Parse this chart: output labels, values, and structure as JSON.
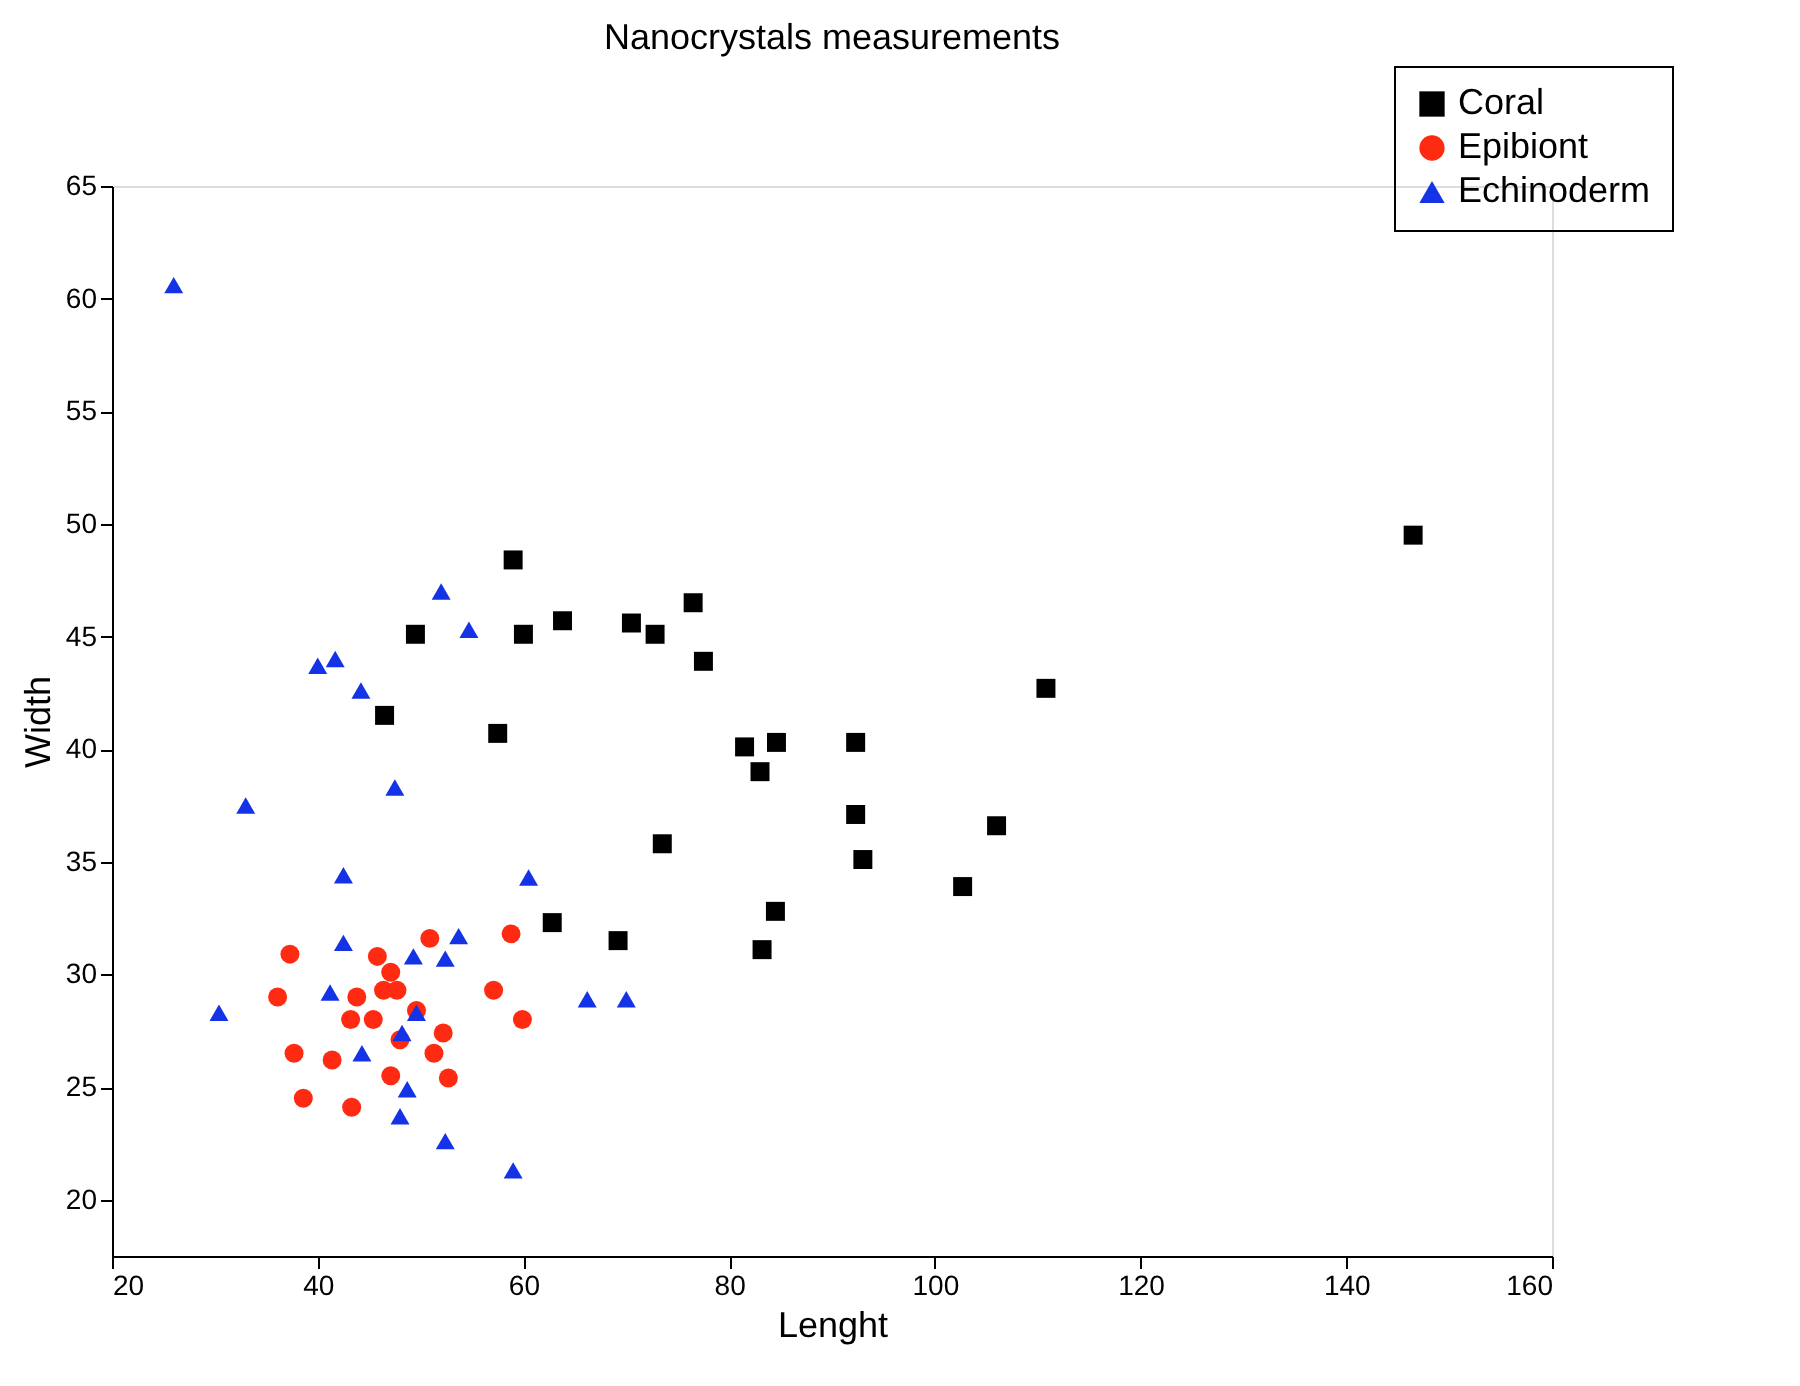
{
  "chart_data": {
    "type": "scatter",
    "title": "Nanocrystals measurements",
    "xlabel": "Lenght",
    "ylabel": "Width",
    "xlim": [
      20,
      160
    ],
    "xticks": [
      20,
      40,
      60,
      80,
      100,
      120,
      140,
      160
    ],
    "ylim": [
      17.5,
      65
    ],
    "yticks": [
      20,
      25,
      30,
      35,
      40,
      45,
      50,
      55,
      60,
      65
    ],
    "grid": false,
    "legend": "top right",
    "series": [
      {
        "name": "Coral",
        "color": "#000000",
        "marker": "square",
        "x": [
          59,
          49.5,
          60,
          63.8,
          70.5,
          72.8,
          76.5,
          77.5,
          46.5,
          57.5,
          81.5,
          83,
          84.6,
          92.3,
          92.3,
          93,
          73.5,
          106,
          110.8,
          102.7,
          84.5,
          83.2,
          62.8,
          69.2,
          146.5
        ],
        "values": [
          48.4,
          45.1,
          45.1,
          45.7,
          45.6,
          45.1,
          46.5,
          43.9,
          41.5,
          40.7,
          40.1,
          39,
          40.3,
          40.3,
          37.1,
          35.1,
          35.8,
          36.6,
          42.7,
          33.9,
          32.8,
          31.1,
          32.3,
          31.5,
          49.5
        ]
      },
      {
        "name": "Epibiont",
        "color": "#ff2a12",
        "marker": "circle",
        "x": [
          37.3,
          36.1,
          45.8,
          47.1,
          46.4,
          47.7,
          43.8,
          43.2,
          45.4,
          48.0,
          49.6,
          50.9,
          52.2,
          51.3,
          47.1,
          52.7,
          57.1,
          58.8,
          59.9,
          37.7,
          41.4,
          38.6,
          43.3
        ],
        "values": [
          30.9,
          29.0,
          30.8,
          30.1,
          29.3,
          29.3,
          29.0,
          28.0,
          28.0,
          27.1,
          28.4,
          31.6,
          27.4,
          26.5,
          25.5,
          25.4,
          29.3,
          31.8,
          28.0,
          26.5,
          26.2,
          24.5,
          24.1
        ]
      },
      {
        "name": "Echinoderm",
        "color": "#1432e6",
        "marker": "triangle",
        "x": [
          26,
          52,
          54.7,
          40,
          41.7,
          44.2,
          33,
          47.5,
          42.5,
          60.5,
          42.5,
          49.3,
          52.4,
          53.7,
          41.2,
          30.4,
          49.6,
          48.2,
          44.3,
          48.7,
          48.0,
          52.4,
          59.0,
          66.2,
          70.0
        ],
        "values": [
          60.6,
          47.0,
          45.3,
          43.7,
          44.0,
          42.6,
          37.5,
          38.3,
          34.4,
          34.3,
          31.4,
          30.8,
          30.7,
          31.7,
          29.2,
          28.3,
          28.3,
          27.4,
          26.5,
          24.9,
          23.7,
          22.6,
          21.3,
          28.9,
          28.9
        ]
      }
    ]
  }
}
